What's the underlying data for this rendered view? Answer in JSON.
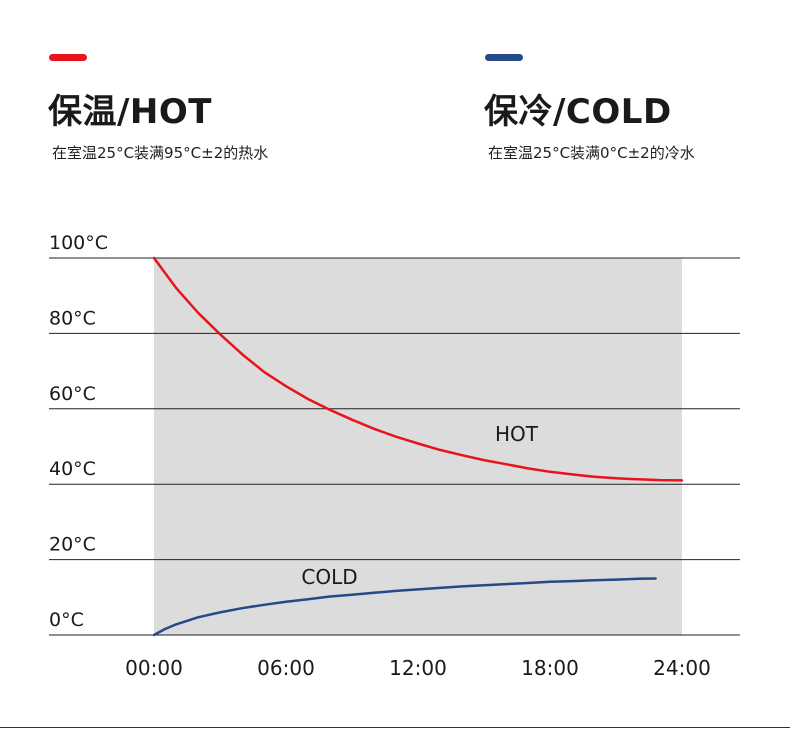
{
  "colors": {
    "hot": "#e8141b",
    "cold": "#26498a",
    "fill": "#dcdcdc",
    "grid": "#222222"
  },
  "hot_panel": {
    "title": "保温/HOT",
    "subtitle": "在室温25°C装满95°C±2的热水"
  },
  "cold_panel": {
    "title": "保冷/COLD",
    "subtitle": "在室温25°C装满0°C±2的冷水"
  },
  "chart_data": {
    "type": "line",
    "y_ticks": [
      {
        "value": 0,
        "label": "0°C"
      },
      {
        "value": 20,
        "label": "20°C"
      },
      {
        "value": 40,
        "label": "40°C"
      },
      {
        "value": 60,
        "label": "60°C"
      },
      {
        "value": 80,
        "label": "80°C"
      },
      {
        "value": 100,
        "label": "100°C"
      }
    ],
    "x_ticks": [
      {
        "value": 0,
        "label": "00:00"
      },
      {
        "value": 6,
        "label": "06:00"
      },
      {
        "value": 12,
        "label": "12:00"
      },
      {
        "value": 18,
        "label": "18:00"
      },
      {
        "value": 24,
        "label": "24:00"
      }
    ],
    "ylim": [
      0,
      100
    ],
    "xlim": [
      0,
      24
    ],
    "shaded_range": [
      0,
      24
    ],
    "grid": true,
    "series": [
      {
        "name": "HOT",
        "color_key": "hot",
        "x": [
          0,
          1,
          2,
          3,
          4,
          5,
          6,
          7,
          8,
          9,
          10,
          11,
          12,
          13,
          14,
          15,
          16,
          17,
          18,
          19,
          20,
          21,
          22,
          23,
          24
        ],
        "y": [
          100,
          92.1,
          85.5,
          79.8,
          74.5,
          69.8,
          66.0,
          62.6,
          59.7,
          57.1,
          54.7,
          52.6,
          50.8,
          49.1,
          47.7,
          46.4,
          45.3,
          44.2,
          43.3,
          42.6,
          42.0,
          41.6,
          41.3,
          41.1,
          41.0
        ]
      },
      {
        "name": "COLD",
        "color_key": "cold",
        "x": [
          0,
          0.5,
          1,
          2,
          3,
          4,
          5,
          6,
          7,
          8,
          9,
          10,
          11,
          12,
          13,
          14,
          15,
          16,
          17,
          18,
          19,
          20,
          21,
          22,
          22.8
        ],
        "y": [
          0,
          1.6,
          2.8,
          4.7,
          6.0,
          7.1,
          8.0,
          8.8,
          9.5,
          10.2,
          10.7,
          11.2,
          11.7,
          12.1,
          12.5,
          12.9,
          13.2,
          13.5,
          13.8,
          14.1,
          14.3,
          14.5,
          14.7,
          14.9,
          15.0
        ]
      }
    ],
    "annotations": [
      {
        "text": "HOT",
        "x": 15.5,
        "y": 51.5
      },
      {
        "text": "COLD",
        "x": 6.7,
        "y": 13.5
      }
    ]
  }
}
